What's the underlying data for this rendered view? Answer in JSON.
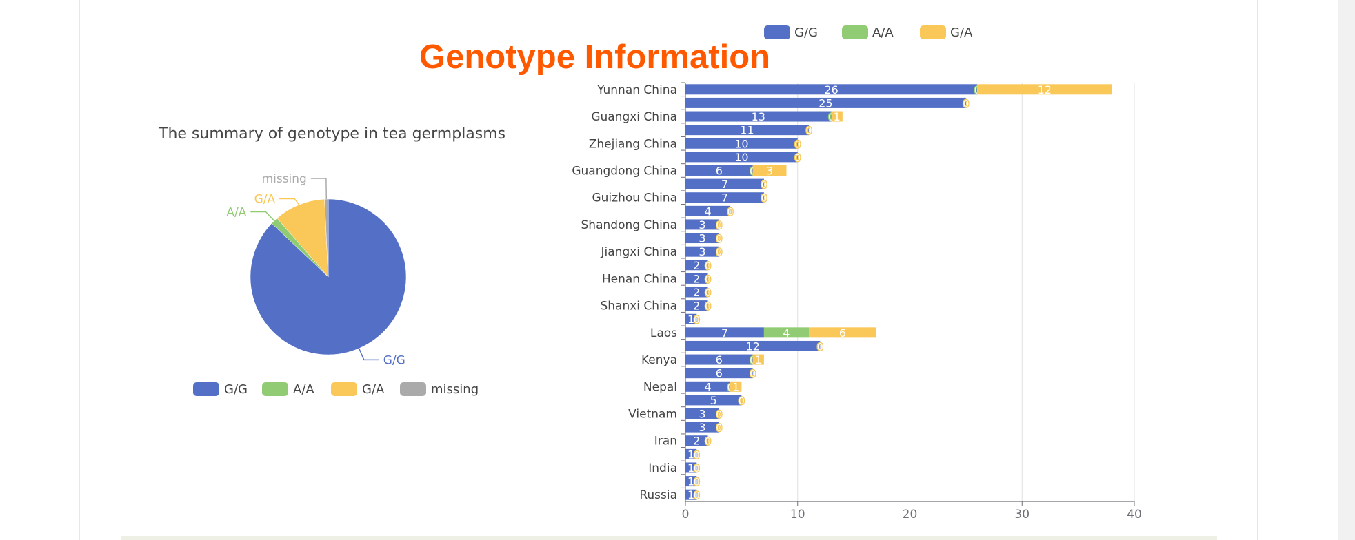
{
  "page": {
    "title": "Genotype Information"
  },
  "colors": {
    "G/G": "#5470c6",
    "A/A": "#91cc75",
    "G/A": "#fac858",
    "missing": "#aaaaaa"
  },
  "pie": {
    "title": "The summary of genotype in tea germplasms",
    "legend": [
      "G/G",
      "A/A",
      "G/A",
      "missing"
    ]
  },
  "chart_data": [
    {
      "type": "pie",
      "title": "The summary of genotype in tea germplasms",
      "labels": [
        "G/G",
        "A/A",
        "G/A",
        "missing"
      ],
      "values": [
        229,
        4,
        28,
        2
      ],
      "legend_position": "bottom"
    },
    {
      "type": "bar",
      "orientation": "horizontal",
      "stacked": true,
      "title": "",
      "xlabel": "",
      "ylabel": "",
      "xlim": [
        0,
        40
      ],
      "x_ticks": [
        0,
        10,
        20,
        30,
        40
      ],
      "grid": true,
      "legend_position": "top",
      "categories": [
        "Yunnan China",
        "",
        "Guangxi China",
        "",
        "Zhejiang China",
        "",
        "Guangdong China",
        "",
        "Guizhou China",
        "",
        "Shandong China",
        "",
        "Jiangxi China",
        "",
        "Henan China",
        "",
        "Shanxi China",
        "",
        "Laos",
        "",
        "Kenya",
        "",
        "Nepal",
        "",
        "Vietnam",
        "",
        "Iran",
        "",
        "India",
        "",
        "Russia"
      ],
      "series": [
        {
          "name": "G/G",
          "values": [
            26,
            25,
            13,
            11,
            10,
            10,
            6,
            7,
            7,
            4,
            3,
            3,
            3,
            2,
            2,
            2,
            2,
            1,
            7,
            12,
            6,
            6,
            4,
            5,
            3,
            3,
            2,
            1,
            1,
            1,
            1
          ]
        },
        {
          "name": "A/A",
          "values": [
            0,
            0,
            0,
            0,
            0,
            0,
            0,
            0,
            0,
            0,
            0,
            0,
            0,
            0,
            0,
            0,
            0,
            0,
            4,
            0,
            0,
            0,
            0,
            0,
            0,
            0,
            0,
            0,
            0,
            0,
            0
          ]
        },
        {
          "name": "G/A",
          "values": [
            12,
            0,
            1,
            0,
            0,
            0,
            3,
            0,
            0,
            0,
            0,
            0,
            0,
            0,
            0,
            0,
            0,
            0,
            6,
            0,
            1,
            0,
            1,
            0,
            0,
            0,
            0,
            0,
            0,
            0,
            0
          ]
        }
      ]
    }
  ]
}
